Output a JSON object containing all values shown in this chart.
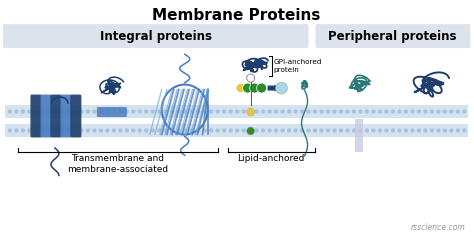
{
  "title": "Membrane Proteins",
  "title_fontsize": 11,
  "title_fontweight": "bold",
  "bg_color": "#ffffff",
  "section_integral_label": "Integral proteins",
  "section_peripheral_label": "Peripheral proteins",
  "section_integral_bg": "#dde3ec",
  "section_peripheral_bg": "#dde3ec",
  "sub_label_transmembrane": "Transmembrane and\nmembrane-associated",
  "sub_label_lipid": "Lipid-anchored",
  "gpi_label": "GPI-anchored\nprotein",
  "watermark": "rsscience.com",
  "membrane_color": "#d5e3f0",
  "membrane_dot_color": "#a8c4dc",
  "protein_blue_dark": "#1e3f6e",
  "protein_blue_mid": "#4a7cc0",
  "protein_blue_light": "#7aaad5",
  "protein_teal": "#2a7a7a",
  "green_dark": "#2d8a2d",
  "green_mid": "#5ab55a",
  "yellow": "#e8c832",
  "cyan_light": "#a8d8e8",
  "label_fontsize": 6.5,
  "small_fontsize": 5.5
}
